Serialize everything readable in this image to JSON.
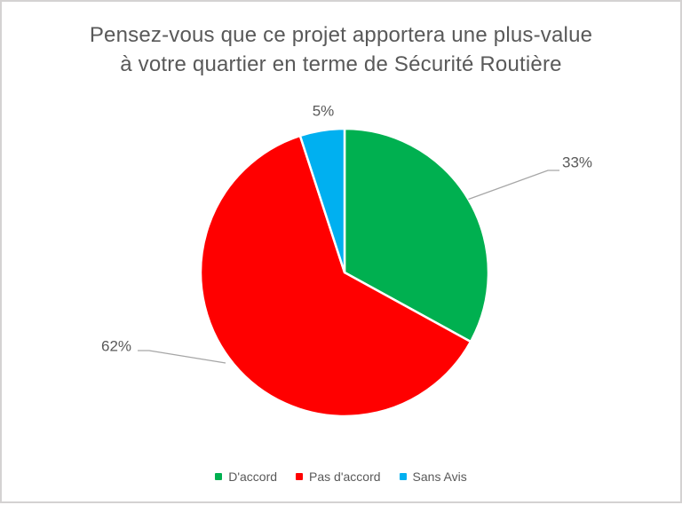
{
  "title": {
    "text": "Pensez-vous que ce projet apportera une plus-value à votre quartier en terme de Sécurité Routière",
    "lines": [
      "Pensez-vous que ce projet apportera une plus-value",
      "à votre quartier en terme de Sécurité Routière"
    ],
    "color": "#595959"
  },
  "chart_data": {
    "type": "pie",
    "categories": [
      "D'accord",
      "Pas d'accord",
      "Sans Avis"
    ],
    "values": [
      33,
      62,
      5
    ],
    "unit": "percent",
    "data_labels": [
      "33%",
      "62%",
      "5%"
    ],
    "colors": [
      "#00B050",
      "#FF0000",
      "#00B0F0"
    ],
    "start_angle_deg": 0,
    "direction": "clockwise",
    "slice_border_color": "#FFFFFF",
    "leader_line_color": "#A6A6A6",
    "label_color": "#595959",
    "legend": {
      "position": "bottom",
      "items": [
        {
          "label": "D'accord",
          "color": "#00B050"
        },
        {
          "label": "Pas d'accord",
          "color": "#FF0000"
        },
        {
          "label": "Sans Avis",
          "color": "#00B0F0"
        }
      ]
    }
  }
}
